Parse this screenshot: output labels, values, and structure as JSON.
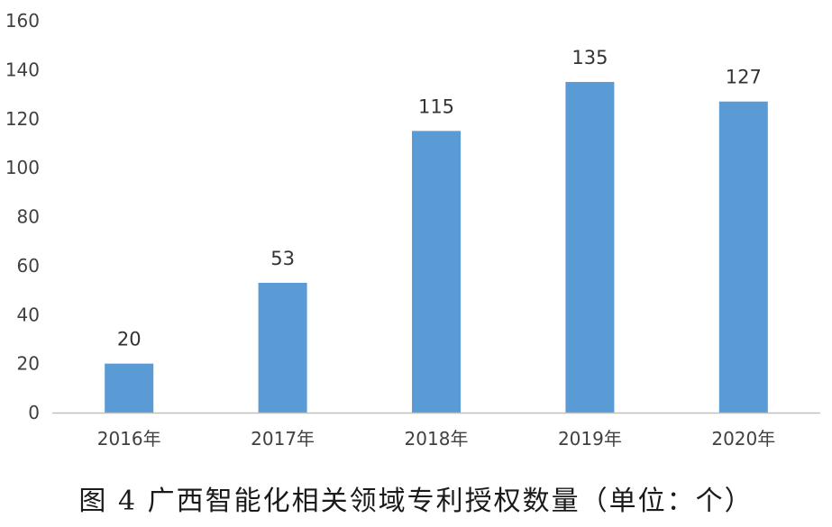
{
  "chart_data": {
    "type": "bar",
    "categories": [
      "2016年",
      "2017年",
      "2018年",
      "2019年",
      "2020年"
    ],
    "values": [
      20,
      53,
      115,
      135,
      127
    ],
    "title": "",
    "xlabel": "",
    "ylabel": "",
    "ylim": [
      0,
      160
    ],
    "yticks": [
      0,
      20,
      40,
      60,
      80,
      100,
      120,
      140,
      160
    ],
    "grid": false,
    "data_labels": true,
    "bar_color": "#5B9BD5",
    "axis_color": "#BFBFBF"
  },
  "caption": "图 4  广西智能化相关领域专利授权数量（单位：个）"
}
